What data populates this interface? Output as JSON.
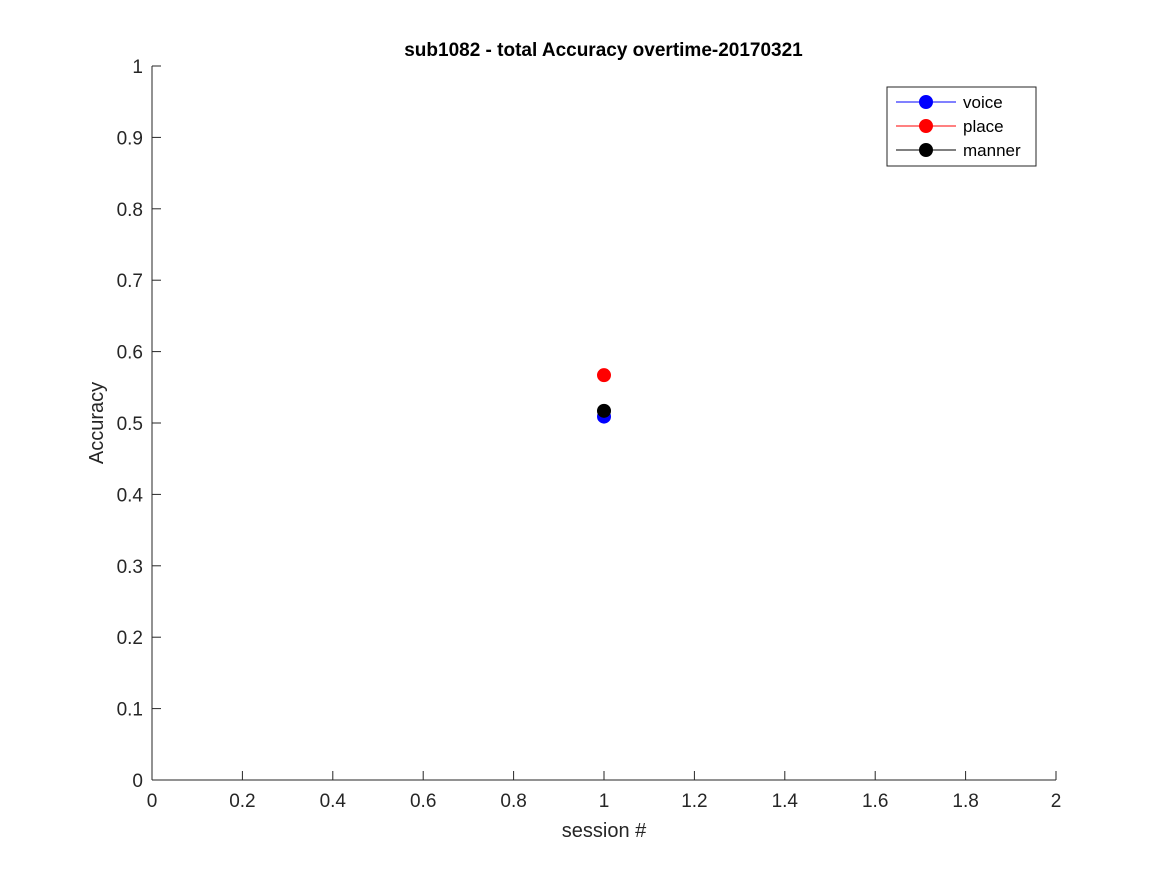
{
  "chart_data": {
    "type": "scatter",
    "title": "sub1082 - total Accuracy overtime-20170321",
    "xlabel": "session #",
    "ylabel": "Accuracy",
    "xlim": [
      0,
      2
    ],
    "ylim": [
      0,
      1
    ],
    "xticks": [
      0,
      0.2,
      0.4,
      0.6,
      0.8,
      1,
      1.2,
      1.4,
      1.6,
      1.8,
      2
    ],
    "xtick_labels": [
      "0",
      "0.2",
      "0.4",
      "0.6",
      "0.8",
      "1",
      "1.2",
      "1.4",
      "1.6",
      "1.8",
      "2"
    ],
    "yticks": [
      0,
      0.1,
      0.2,
      0.3,
      0.4,
      0.5,
      0.6,
      0.7,
      0.8,
      0.9,
      1
    ],
    "ytick_labels": [
      "0",
      "0.1",
      "0.2",
      "0.3",
      "0.4",
      "0.5",
      "0.6",
      "0.7",
      "0.8",
      "0.9",
      "1"
    ],
    "grid": false,
    "legend_position": "top-right",
    "series": [
      {
        "name": "voice",
        "color": "#0000ff",
        "x": [
          1
        ],
        "y": [
          0.509
        ]
      },
      {
        "name": "place",
        "color": "#ff0000",
        "x": [
          1
        ],
        "y": [
          0.567
        ]
      },
      {
        "name": "manner",
        "color": "#000000",
        "x": [
          1
        ],
        "y": [
          0.517
        ]
      }
    ]
  }
}
